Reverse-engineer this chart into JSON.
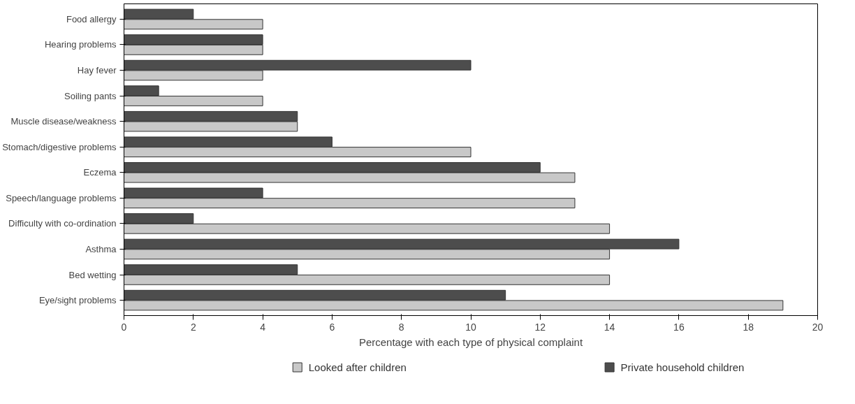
{
  "chart_data": {
    "type": "bar",
    "orientation": "horizontal",
    "xlabel": "Percentage with each type of physical complaint",
    "categories": [
      "Food allergy",
      "Hearing problems",
      "Hay fever",
      "Soiling pants",
      "Muscle disease/weakness",
      "Stomach/digestive problems",
      "Eczema",
      "Speech/language problems",
      "Difficulty with co-ordination",
      "Asthma",
      "Bed wetting",
      "Eye/sight problems"
    ],
    "series": [
      {
        "name": "Looked after children",
        "color": "#c8c8c8",
        "values": [
          4,
          4,
          4,
          4,
          5,
          10,
          13,
          13,
          14,
          14,
          14,
          19
        ]
      },
      {
        "name": "Private household children",
        "color": "#4d4d4d",
        "values": [
          2,
          4,
          10,
          1,
          5,
          6,
          12,
          4,
          2,
          16,
          5,
          11
        ]
      }
    ],
    "xlim": [
      0,
      20
    ],
    "xticks": [
      0,
      2,
      4,
      6,
      8,
      10,
      12,
      14,
      16,
      18,
      20
    ],
    "grid": false,
    "legend": "bottom"
  }
}
